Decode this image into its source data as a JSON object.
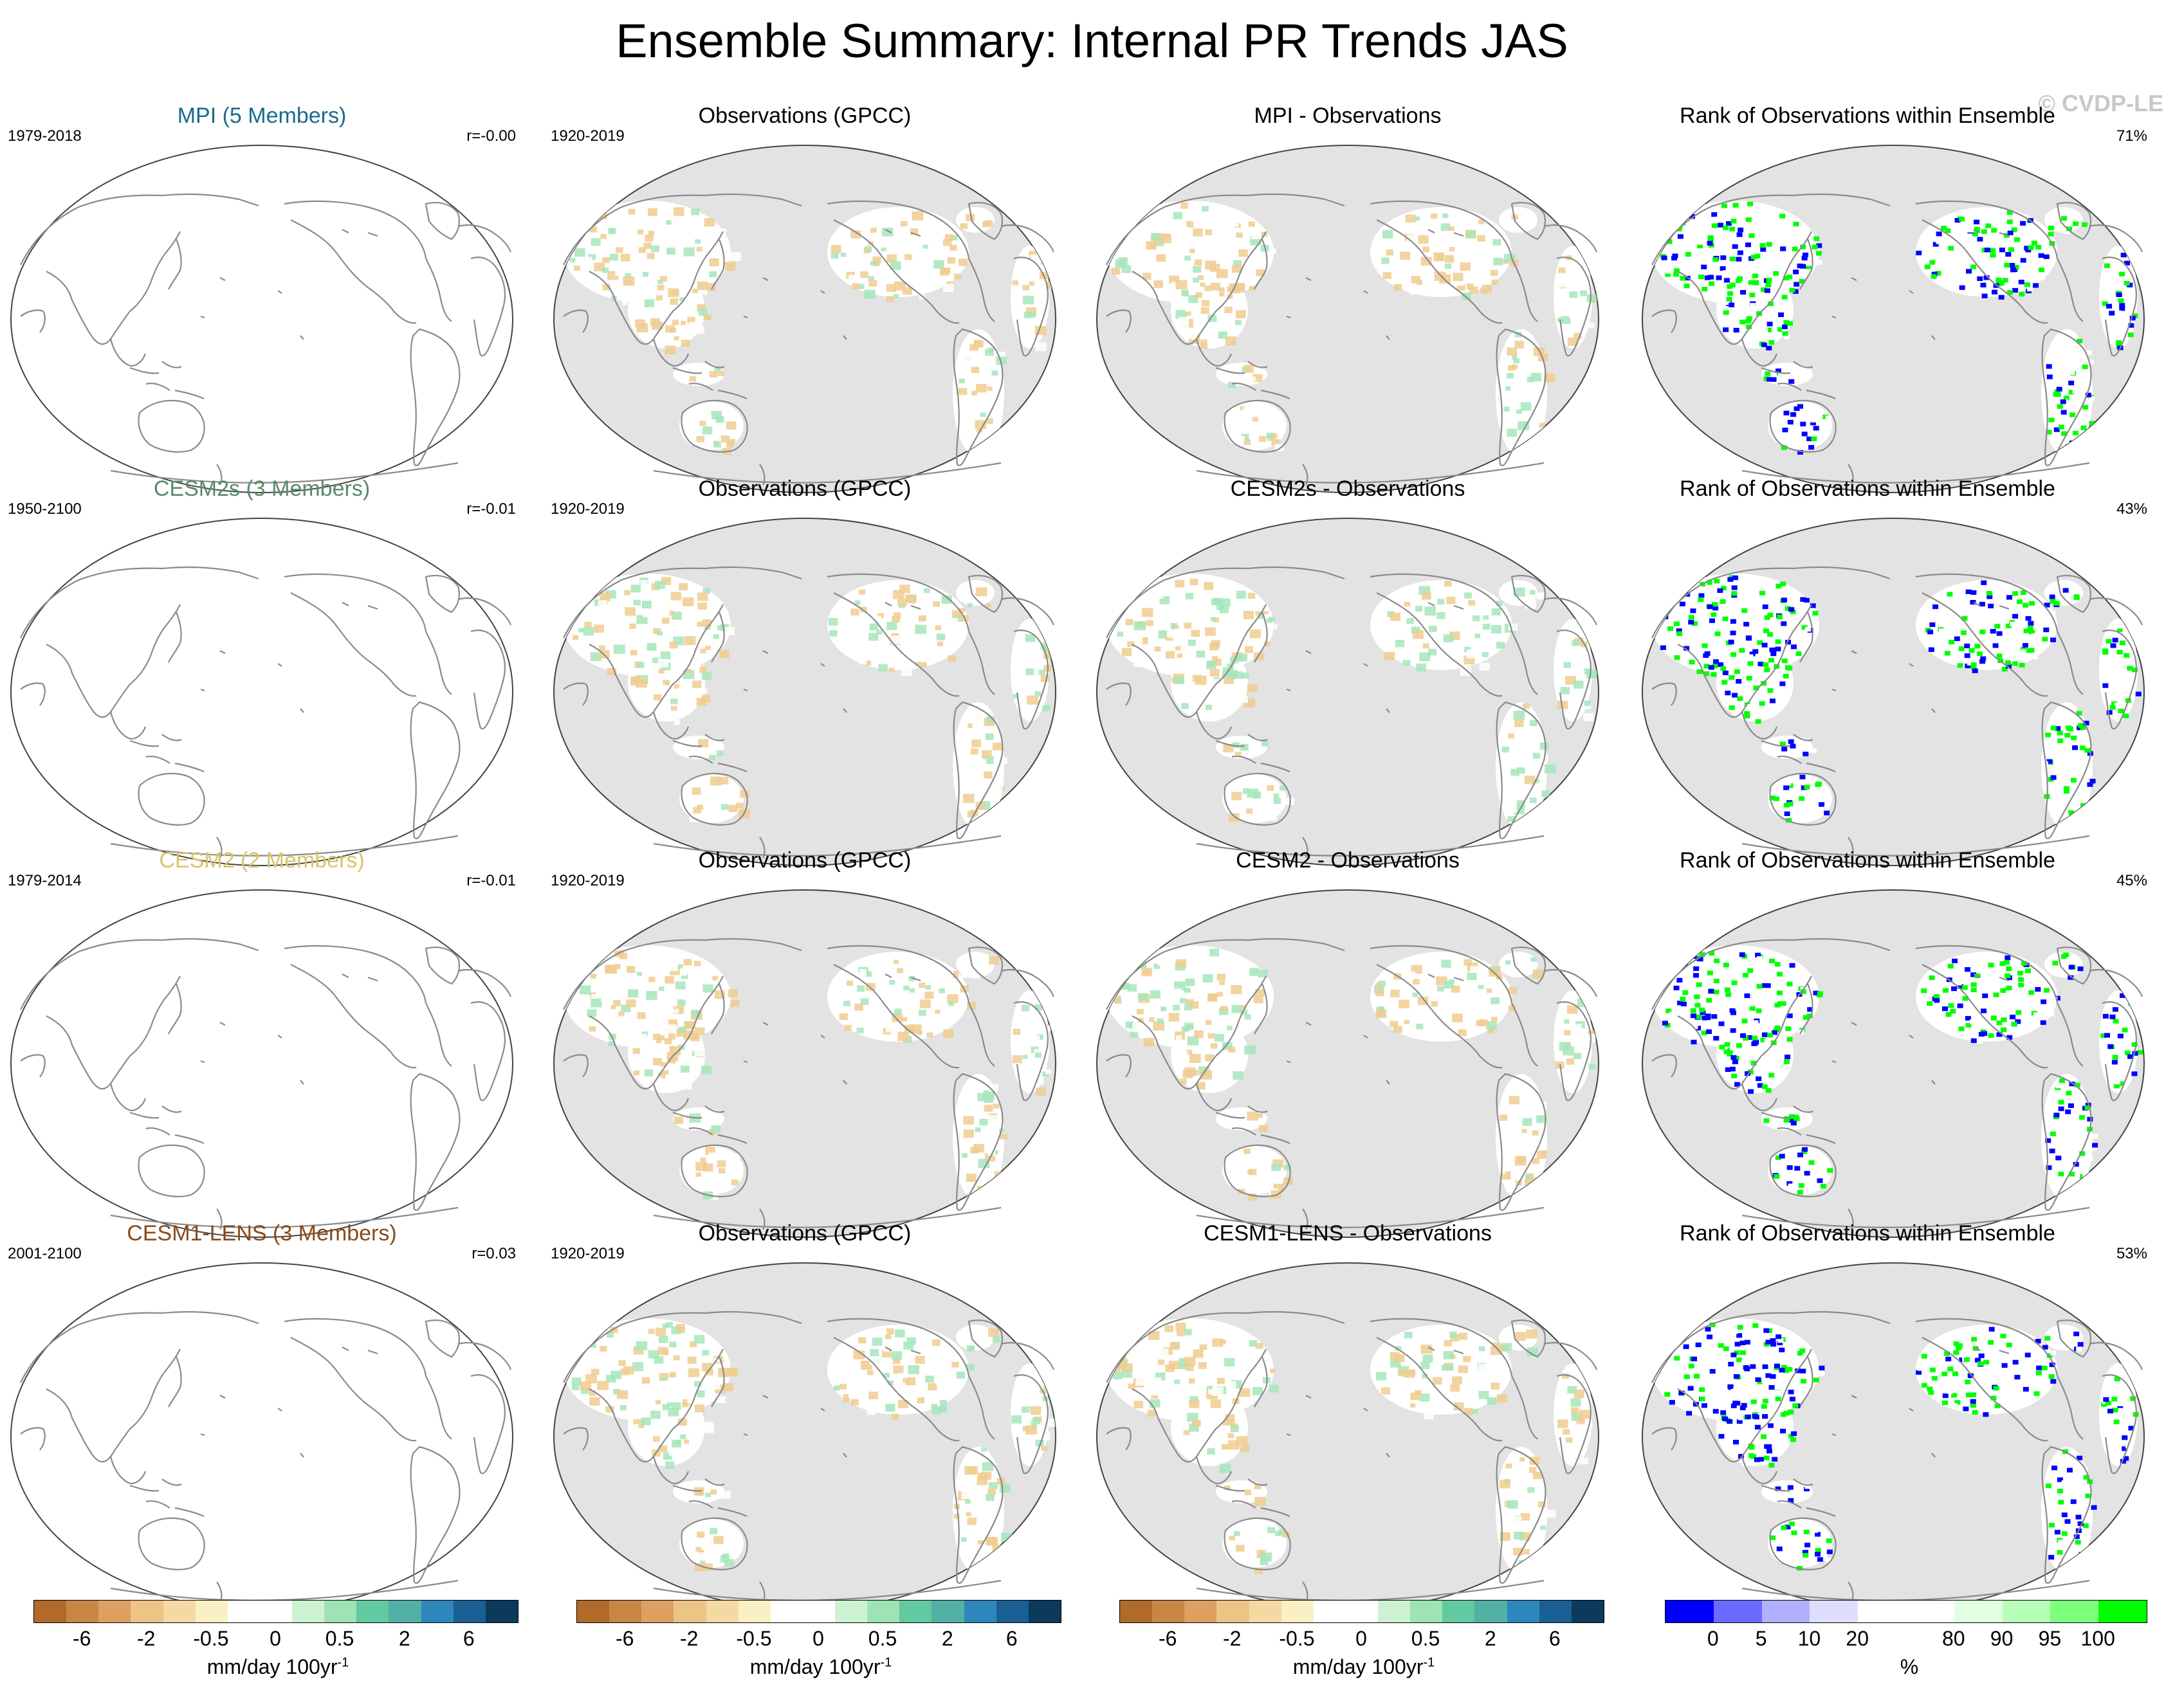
{
  "figure": {
    "title": "Ensemble Summary: Internal PR Trends JAS",
    "watermark": "© CVDP-LE"
  },
  "rows": [
    {
      "model": {
        "title": "MPI (5 Members)",
        "title_color": "#1a6b8a",
        "period": "1979-2018",
        "corr": "r=-0.00"
      },
      "obs": {
        "title": "Observations (GPCC)",
        "period": "1920-2019"
      },
      "diff": {
        "title": "MPI - Observations"
      },
      "rank": {
        "title": "Rank of Observations within Ensemble",
        "percent": "71%"
      }
    },
    {
      "model": {
        "title": "CESM2s (3 Members)",
        "title_color": "#5a8a6a",
        "period": "1950-2100",
        "corr": "r=-0.01"
      },
      "obs": {
        "title": "Observations (GPCC)",
        "period": "1920-2019"
      },
      "diff": {
        "title": "CESM2s - Observations"
      },
      "rank": {
        "title": "Rank of Observations within Ensemble",
        "percent": "43%"
      }
    },
    {
      "model": {
        "title": "CESM2 (2 Members)",
        "title_color": "#d8c46a",
        "period": "1979-2014",
        "corr": "r=-0.01"
      },
      "obs": {
        "title": "Observations (GPCC)",
        "period": "1920-2019"
      },
      "diff": {
        "title": "CESM2 - Observations"
      },
      "rank": {
        "title": "Rank of Observations within Ensemble",
        "percent": "45%"
      }
    },
    {
      "model": {
        "title": "CESM1-LENS (3 Members)",
        "title_color": "#8a4a1a",
        "period": "2001-2100",
        "corr": "r=0.03"
      },
      "obs": {
        "title": "Observations (GPCC)",
        "period": "1920-2019"
      },
      "diff": {
        "title": "CESM1-LENS - Observations"
      },
      "rank": {
        "title": "Rank of Observations within Ensemble",
        "percent": "53%"
      }
    }
  ],
  "colorbars": {
    "trend": {
      "colors": [
        "#b06a2a",
        "#c98542",
        "#dda060",
        "#eec386",
        "#f5d9a2",
        "#fbf0c4",
        "#ffffff",
        "#ffffff",
        "#cdf2d2",
        "#9de3b4",
        "#62c9a0",
        "#52b0a6",
        "#2e86bd",
        "#1a5f93",
        "#0c3a5c"
      ],
      "ticks": [
        "-6",
        "-2",
        "-0.5",
        "0",
        "0.5",
        "2",
        "6"
      ],
      "unit": "mm/day 100yr",
      "unit_sup": "-1"
    },
    "rank": {
      "colors": [
        "#0000ff",
        "#6b6bff",
        "#b0b0ff",
        "#dedeff",
        "#ffffff",
        "#ffffff",
        "#e2ffe2",
        "#b7ffb7",
        "#7dff7d",
        "#00ff00"
      ],
      "ticks": [
        "0",
        "5",
        "10",
        "20",
        "80",
        "90",
        "95",
        "100"
      ],
      "unit": "%"
    }
  },
  "colors": {
    "ocean": "#e3e3e3",
    "land_obs": "#ffffff",
    "coast": "#8a8a8a",
    "dry_trend": "#f0cd90",
    "wet_trend": "#a6e6bb",
    "rank_high": "#00ff00",
    "rank_low": "#0000ff"
  }
}
